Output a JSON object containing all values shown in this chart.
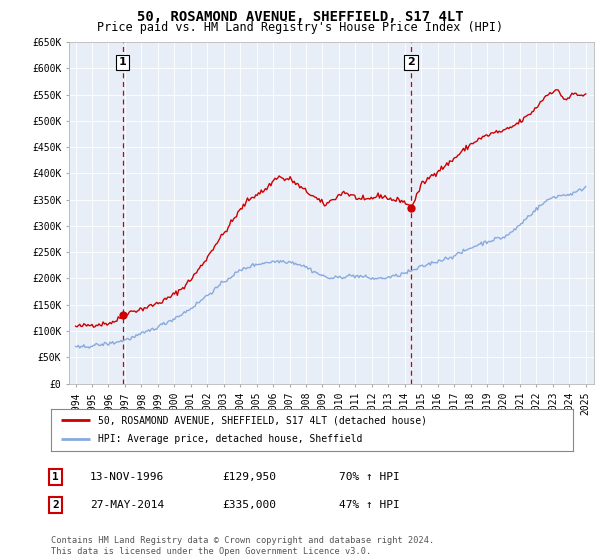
{
  "title": "50, ROSAMOND AVENUE, SHEFFIELD, S17 4LT",
  "subtitle": "Price paid vs. HM Land Registry's House Price Index (HPI)",
  "ylim": [
    0,
    650000
  ],
  "yticks": [
    0,
    50000,
    100000,
    150000,
    200000,
    250000,
    300000,
    350000,
    400000,
    450000,
    500000,
    550000,
    600000,
    650000
  ],
  "ytick_labels": [
    "£0",
    "£50K",
    "£100K",
    "£150K",
    "£200K",
    "£250K",
    "£300K",
    "£350K",
    "£400K",
    "£450K",
    "£500K",
    "£550K",
    "£600K",
    "£650K"
  ],
  "xlim_start": 1993.6,
  "xlim_end": 2025.5,
  "transaction1_x": 1996.87,
  "transaction1_y": 129950,
  "transaction2_x": 2014.38,
  "transaction2_y": 335000,
  "red_line_color": "#cc0000",
  "blue_line_color": "#88aadd",
  "plot_bg_color": "#e8eef8",
  "grid_color": "#ffffff",
  "background_color": "#ffffff",
  "legend_line1": "50, ROSAMOND AVENUE, SHEFFIELD, S17 4LT (detached house)",
  "legend_line2": "HPI: Average price, detached house, Sheffield",
  "table_row1": [
    "1",
    "13-NOV-1996",
    "£129,950",
    "70% ↑ HPI"
  ],
  "table_row2": [
    "2",
    "27-MAY-2014",
    "£335,000",
    "47% ↑ HPI"
  ],
  "footnote": "Contains HM Land Registry data © Crown copyright and database right 2024.\nThis data is licensed under the Open Government Licence v3.0.",
  "title_fontsize": 10,
  "subtitle_fontsize": 8.5,
  "tick_fontsize": 7,
  "red_anchors_x": [
    1994.0,
    1994.5,
    1995.0,
    1995.5,
    1996.0,
    1996.5,
    1996.87,
    1997.0,
    1997.5,
    1998.0,
    1998.5,
    1999.0,
    1999.5,
    2000.0,
    2000.5,
    2001.0,
    2001.5,
    2002.0,
    2002.5,
    2003.0,
    2003.5,
    2004.0,
    2004.5,
    2005.0,
    2005.5,
    2006.0,
    2006.3,
    2006.7,
    2007.0,
    2007.3,
    2007.6,
    2007.9,
    2008.2,
    2008.5,
    2008.8,
    2009.1,
    2009.4,
    2009.7,
    2010.0,
    2010.3,
    2010.6,
    2011.0,
    2011.3,
    2011.6,
    2011.9,
    2012.2,
    2012.5,
    2012.8,
    2013.1,
    2013.4,
    2013.7,
    2014.0,
    2014.38,
    2014.7,
    2015.0,
    2015.5,
    2016.0,
    2016.5,
    2017.0,
    2017.5,
    2018.0,
    2018.5,
    2019.0,
    2019.5,
    2020.0,
    2020.5,
    2021.0,
    2021.5,
    2022.0,
    2022.3,
    2022.6,
    2022.9,
    2023.2,
    2023.5,
    2023.8,
    2024.0,
    2024.3,
    2024.6,
    2025.0
  ],
  "red_anchors_y": [
    108000,
    110000,
    112000,
    113000,
    115000,
    120000,
    129950,
    133000,
    138000,
    142000,
    147000,
    153000,
    160000,
    170000,
    182000,
    198000,
    218000,
    240000,
    265000,
    285000,
    308000,
    330000,
    350000,
    360000,
    368000,
    385000,
    395000,
    388000,
    390000,
    383000,
    375000,
    368000,
    362000,
    355000,
    348000,
    340000,
    345000,
    352000,
    358000,
    365000,
    360000,
    355000,
    350000,
    348000,
    352000,
    355000,
    358000,
    355000,
    352000,
    348000,
    350000,
    345000,
    335000,
    355000,
    378000,
    392000,
    405000,
    415000,
    428000,
    442000,
    455000,
    465000,
    472000,
    478000,
    480000,
    488000,
    498000,
    510000,
    525000,
    538000,
    548000,
    555000,
    560000,
    548000,
    540000,
    545000,
    552000,
    548000,
    550000
  ],
  "hpi_anchors_x": [
    1994.0,
    1994.5,
    1995.0,
    1995.5,
    1996.0,
    1996.5,
    1997.0,
    1997.5,
    1998.0,
    1998.5,
    1999.0,
    1999.5,
    2000.0,
    2000.5,
    2001.0,
    2001.5,
    2002.0,
    2002.5,
    2003.0,
    2003.5,
    2004.0,
    2004.5,
    2005.0,
    2005.5,
    2006.0,
    2006.5,
    2007.0,
    2007.5,
    2008.0,
    2008.5,
    2009.0,
    2009.5,
    2010.0,
    2010.5,
    2011.0,
    2011.5,
    2012.0,
    2012.5,
    2013.0,
    2013.5,
    2014.0,
    2014.5,
    2015.0,
    2015.5,
    2016.0,
    2016.5,
    2017.0,
    2017.5,
    2018.0,
    2018.5,
    2019.0,
    2019.5,
    2020.0,
    2020.5,
    2021.0,
    2021.5,
    2022.0,
    2022.5,
    2023.0,
    2023.5,
    2024.0,
    2024.5,
    2025.0
  ],
  "hpi_anchors_y": [
    68000,
    70000,
    72000,
    74000,
    76000,
    79000,
    83000,
    88000,
    94000,
    101000,
    108000,
    116000,
    124000,
    133000,
    143000,
    155000,
    168000,
    180000,
    193000,
    205000,
    215000,
    222000,
    227000,
    230000,
    232000,
    233000,
    232000,
    228000,
    222000,
    213000,
    205000,
    200000,
    202000,
    205000,
    205000,
    203000,
    200000,
    200000,
    202000,
    205000,
    210000,
    215000,
    222000,
    228000,
    233000,
    238000,
    243000,
    250000,
    258000,
    265000,
    270000,
    275000,
    278000,
    288000,
    302000,
    318000,
    332000,
    345000,
    355000,
    358000,
    360000,
    365000,
    375000
  ]
}
